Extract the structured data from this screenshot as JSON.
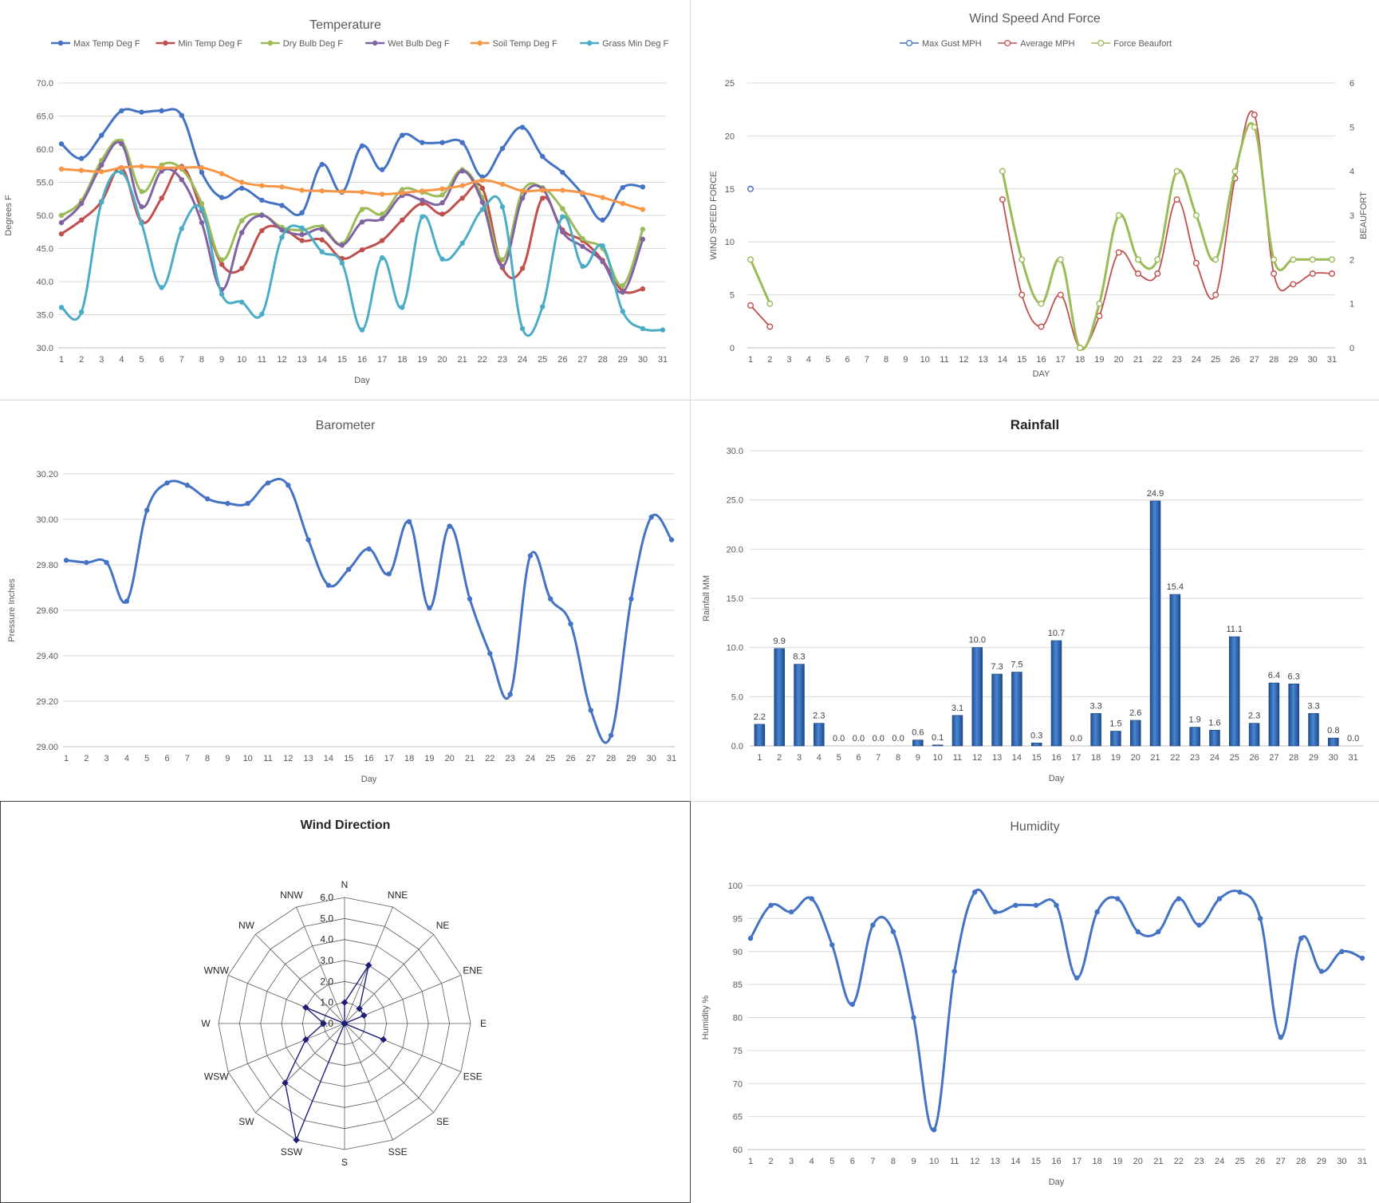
{
  "chart_data": [
    {
      "id": "temperature",
      "type": "line",
      "title": "Temperature",
      "xlabel": "Day",
      "ylabel": "Degrees F",
      "ylim": [
        30,
        70
      ],
      "yticks": [
        "30.0",
        "35.0",
        "40.0",
        "45.0",
        "50.0",
        "55.0",
        "60.0",
        "65.0",
        "70.0"
      ],
      "x": [
        1,
        2,
        3,
        4,
        5,
        6,
        7,
        8,
        9,
        10,
        11,
        12,
        13,
        14,
        15,
        16,
        17,
        18,
        19,
        20,
        21,
        22,
        23,
        24,
        25,
        26,
        27,
        28,
        29,
        30,
        31
      ],
      "grid": true,
      "legend": "top",
      "series": [
        {
          "name": "Max Temp Deg F",
          "color": "#4472C4",
          "values": [
            60.8,
            58.6,
            62.1,
            65.8,
            65.6,
            65.8,
            65.1,
            56.5,
            52.7,
            54.1,
            52.3,
            51.5,
            50.4,
            57.7,
            53.5,
            60.5,
            56.9,
            62.1,
            61.0,
            61.0,
            61.0,
            55.8,
            60.1,
            63.3,
            58.9,
            56.5,
            53.2,
            49.3,
            54.2,
            54.3,
            null
          ]
        },
        {
          "name": "Min Temp Deg F",
          "color": "#C0504D",
          "values": [
            47.2,
            49.3,
            52.1,
            57.2,
            49.0,
            52.6,
            57.4,
            50.7,
            42.6,
            42.0,
            47.7,
            48.1,
            46.2,
            46.3,
            43.5,
            44.8,
            46.2,
            49.3,
            51.8,
            50.2,
            52.6,
            54.1,
            42.1,
            42.0,
            52.6,
            47.8,
            46.2,
            43.2,
            38.6,
            38.9,
            null
          ]
        },
        {
          "name": "Dry Bulb Deg F",
          "color": "#9BBB59",
          "values": [
            50.0,
            52.2,
            58.3,
            61.2,
            53.6,
            57.6,
            57.0,
            51.8,
            43.3,
            49.2,
            50.1,
            48.2,
            47.8,
            48.3,
            45.7,
            50.9,
            50.2,
            53.9,
            53.5,
            53.1,
            56.9,
            52.7,
            43.3,
            53.6,
            54.2,
            51.0,
            46.5,
            45.0,
            39.4,
            47.9,
            null
          ]
        },
        {
          "name": "Wet Bulb Deg F",
          "color": "#8064A2",
          "values": [
            48.9,
            51.8,
            57.6,
            60.8,
            51.3,
            56.7,
            55.4,
            48.9,
            38.8,
            47.4,
            50.0,
            47.8,
            47.1,
            47.9,
            45.5,
            49.0,
            49.5,
            53.0,
            52.3,
            51.9,
            56.7,
            52.0,
            42.3,
            52.6,
            54.0,
            47.5,
            45.3,
            43.0,
            38.4,
            46.4,
            null
          ]
        },
        {
          "name": "Soil Temp Deg F",
          "color": "#F79646",
          "values": [
            57.0,
            56.8,
            56.6,
            57.2,
            57.4,
            57.2,
            57.2,
            57.2,
            56.3,
            55.0,
            54.5,
            54.3,
            53.8,
            53.7,
            53.6,
            53.5,
            53.2,
            53.4,
            53.7,
            54.0,
            54.5,
            55.3,
            54.7,
            53.7,
            53.8,
            53.8,
            53.4,
            52.7,
            51.8,
            50.9,
            null
          ]
        },
        {
          "name": "Grass Min Deg F",
          "color": "#4BACC6",
          "values": [
            36.1,
            35.4,
            52.0,
            56.5,
            48.8,
            39.1,
            48.0,
            50.9,
            38.1,
            36.9,
            35.1,
            46.7,
            48.1,
            44.5,
            42.8,
            32.7,
            43.6,
            36.1,
            49.8,
            43.4,
            45.8,
            50.9,
            51.3,
            32.9,
            36.2,
            49.8,
            42.3,
            45.4,
            35.5,
            32.9,
            32.7
          ]
        }
      ]
    },
    {
      "id": "wind",
      "type": "line",
      "title": "Wind Speed And Force",
      "xlabel": "DAY",
      "ylabel": "WIND SPEED FORCE",
      "y2label": "BEAUFORT",
      "ylim": [
        0,
        25
      ],
      "y2lim": [
        0,
        6
      ],
      "yticks": [
        "0",
        "5",
        "10",
        "15",
        "20",
        "25"
      ],
      "y2ticks": [
        "0",
        "1",
        "2",
        "3",
        "4",
        "5",
        "6"
      ],
      "x": [
        1,
        2,
        3,
        4,
        5,
        6,
        7,
        8,
        9,
        10,
        11,
        12,
        13,
        14,
        15,
        16,
        17,
        18,
        19,
        20,
        21,
        22,
        23,
        24,
        25,
        26,
        27,
        28,
        29,
        30,
        31
      ],
      "legend": "top",
      "series": [
        {
          "name": "Max Gust MPH",
          "color": "#4472C4",
          "axis": "left",
          "values": [
            15,
            null,
            null,
            null,
            null,
            null,
            null,
            null,
            null,
            null,
            null,
            null,
            null,
            null,
            null,
            null,
            null,
            null,
            null,
            null,
            null,
            null,
            null,
            null,
            null,
            null,
            null,
            null,
            null,
            null,
            null
          ]
        },
        {
          "name": "Average MPH",
          "color": "#C0504D",
          "axis": "left",
          "values": [
            4,
            2,
            null,
            null,
            null,
            null,
            null,
            null,
            null,
            null,
            null,
            null,
            null,
            14,
            5,
            2,
            5,
            0,
            3,
            9,
            7,
            7,
            14,
            8,
            5,
            16,
            22,
            7,
            6,
            7,
            7
          ]
        },
        {
          "name": "Force Beaufort",
          "color": "#9BBB59",
          "axis": "right",
          "values": [
            2,
            1,
            null,
            null,
            null,
            null,
            null,
            null,
            null,
            null,
            null,
            null,
            null,
            4,
            2,
            1,
            2,
            0,
            1,
            3,
            2,
            2,
            4,
            3,
            2,
            4,
            5,
            2,
            2,
            2,
            2
          ]
        }
      ]
    },
    {
      "id": "barometer",
      "type": "line",
      "title": "Barometer",
      "xlabel": "Day",
      "ylabel": "Pressure Inches",
      "ylim": [
        29.0,
        30.2
      ],
      "yticks": [
        "29.00",
        "29.20",
        "29.40",
        "29.60",
        "29.80",
        "30.00",
        "30.20"
      ],
      "x": [
        1,
        2,
        3,
        4,
        5,
        6,
        7,
        8,
        9,
        10,
        11,
        12,
        13,
        14,
        15,
        16,
        17,
        18,
        19,
        20,
        21,
        22,
        23,
        24,
        25,
        26,
        27,
        28,
        29,
        30,
        31
      ],
      "grid": true,
      "series": [
        {
          "name": "",
          "color": "#4472C4",
          "values": [
            29.82,
            29.81,
            29.81,
            29.64,
            30.04,
            30.16,
            30.15,
            30.09,
            30.07,
            30.07,
            30.16,
            30.15,
            29.91,
            29.71,
            29.78,
            29.87,
            29.76,
            29.99,
            29.61,
            29.97,
            29.65,
            29.41,
            29.23,
            29.84,
            29.65,
            29.54,
            29.16,
            29.05,
            29.65,
            30.01,
            29.91
          ]
        }
      ]
    },
    {
      "id": "rainfall",
      "type": "bar",
      "title": "Rainfall",
      "xlabel": "Day",
      "ylabel": "Rainfall MM",
      "ylim": [
        0,
        30
      ],
      "yticks": [
        "0.0",
        "5.0",
        "10.0",
        "15.0",
        "20.0",
        "25.0",
        "30.0"
      ],
      "categories": [
        "1",
        "2",
        "3",
        "4",
        "5",
        "6",
        "7",
        "8",
        "9",
        "10",
        "11",
        "12",
        "13",
        "14",
        "15",
        "16",
        "17",
        "18",
        "19",
        "20",
        "21",
        "22",
        "23",
        "24",
        "25",
        "26",
        "27",
        "28",
        "29",
        "30",
        "31"
      ],
      "values": [
        2.2,
        9.9,
        8.3,
        2.3,
        0.0,
        0.0,
        0.0,
        0.0,
        0.6,
        0.1,
        3.1,
        10.0,
        7.3,
        7.5,
        0.3,
        10.7,
        0.0,
        3.3,
        1.5,
        2.6,
        24.9,
        15.4,
        1.9,
        1.6,
        11.1,
        2.3,
        6.4,
        6.3,
        3.3,
        0.8,
        0.0
      ],
      "labels": [
        "2.2",
        "9.9",
        "8.3",
        "2.3",
        "0.0",
        "0.0",
        "0.0",
        "0.0",
        "0.6",
        "0.1",
        "3.1",
        "10.0",
        "7.3",
        "7.5",
        "0.3",
        "10.7",
        "0.0",
        "3.3",
        "1.5",
        "2.6",
        "24.9",
        "15.4",
        "1.9",
        "1.6",
        "11.1",
        "2.3",
        "6.4",
        "6.3",
        "3.3",
        "0.8",
        "0.0"
      ],
      "grid": true,
      "color": "#2E64B5"
    },
    {
      "id": "wind_direction",
      "type": "radar",
      "title": "Wind Direction",
      "rlim": [
        0,
        6
      ],
      "rticks": [
        "0.0",
        "1.0",
        "2.0",
        "3.0",
        "4.0",
        "5.0",
        "6.0"
      ],
      "categories": [
        "N",
        "NNE",
        "NE",
        "ENE",
        "E",
        "ESE",
        "SE",
        "SSE",
        "S",
        "SSW",
        "SW",
        "WSW",
        "W",
        "WNW",
        "NW",
        "NNW"
      ],
      "values": [
        1.0,
        3.0,
        1.0,
        1.0,
        0.0,
        2.0,
        0.0,
        0.0,
        0.0,
        6.0,
        4.0,
        2.0,
        1.0,
        2.0,
        0.0,
        0.0
      ],
      "color": "#1F1F7A"
    },
    {
      "id": "humidity",
      "type": "line",
      "title": "Humidity",
      "xlabel": "Day",
      "ylabel": "Humidity %",
      "ylim": [
        60,
        100
      ],
      "yticks": [
        "60",
        "65",
        "70",
        "75",
        "80",
        "85",
        "90",
        "95",
        "100"
      ],
      "x": [
        1,
        2,
        3,
        4,
        5,
        6,
        7,
        8,
        9,
        10,
        11,
        12,
        13,
        14,
        15,
        16,
        17,
        18,
        19,
        20,
        21,
        22,
        23,
        24,
        25,
        26,
        27,
        28,
        29,
        30,
        31
      ],
      "grid": true,
      "series": [
        {
          "name": "",
          "color": "#4472C4",
          "values": [
            92,
            97,
            96,
            98,
            91,
            82,
            94,
            93,
            80,
            63,
            87,
            99,
            96,
            97,
            97,
            97,
            86,
            96,
            98,
            93,
            93,
            98,
            94,
            98,
            99,
            95,
            77,
            92,
            87,
            90,
            89
          ]
        }
      ]
    }
  ]
}
